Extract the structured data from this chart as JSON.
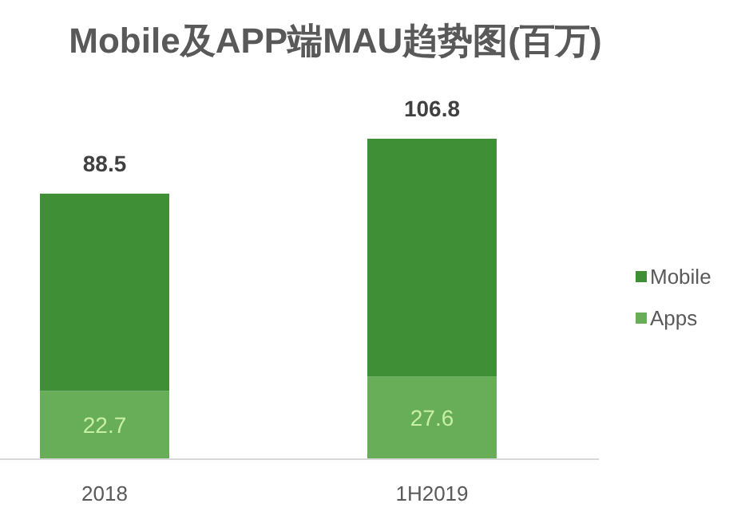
{
  "chart_data": {
    "type": "bar",
    "title": "Mobile及APP端MAU趋势图(百万)",
    "categories": [
      "2018",
      "1H2019"
    ],
    "stacked": true,
    "series": [
      {
        "name": "Apps",
        "color": "#68ad58",
        "values": [
          22.7,
          27.6
        ],
        "value_labels": [
          "22.7",
          "27.6"
        ]
      },
      {
        "name": "Mobile",
        "color": "#3f8f37",
        "values": [
          65.8,
          79.2
        ]
      }
    ],
    "totals": [
      "88.5",
      "106.8"
    ],
    "legend": "right"
  }
}
